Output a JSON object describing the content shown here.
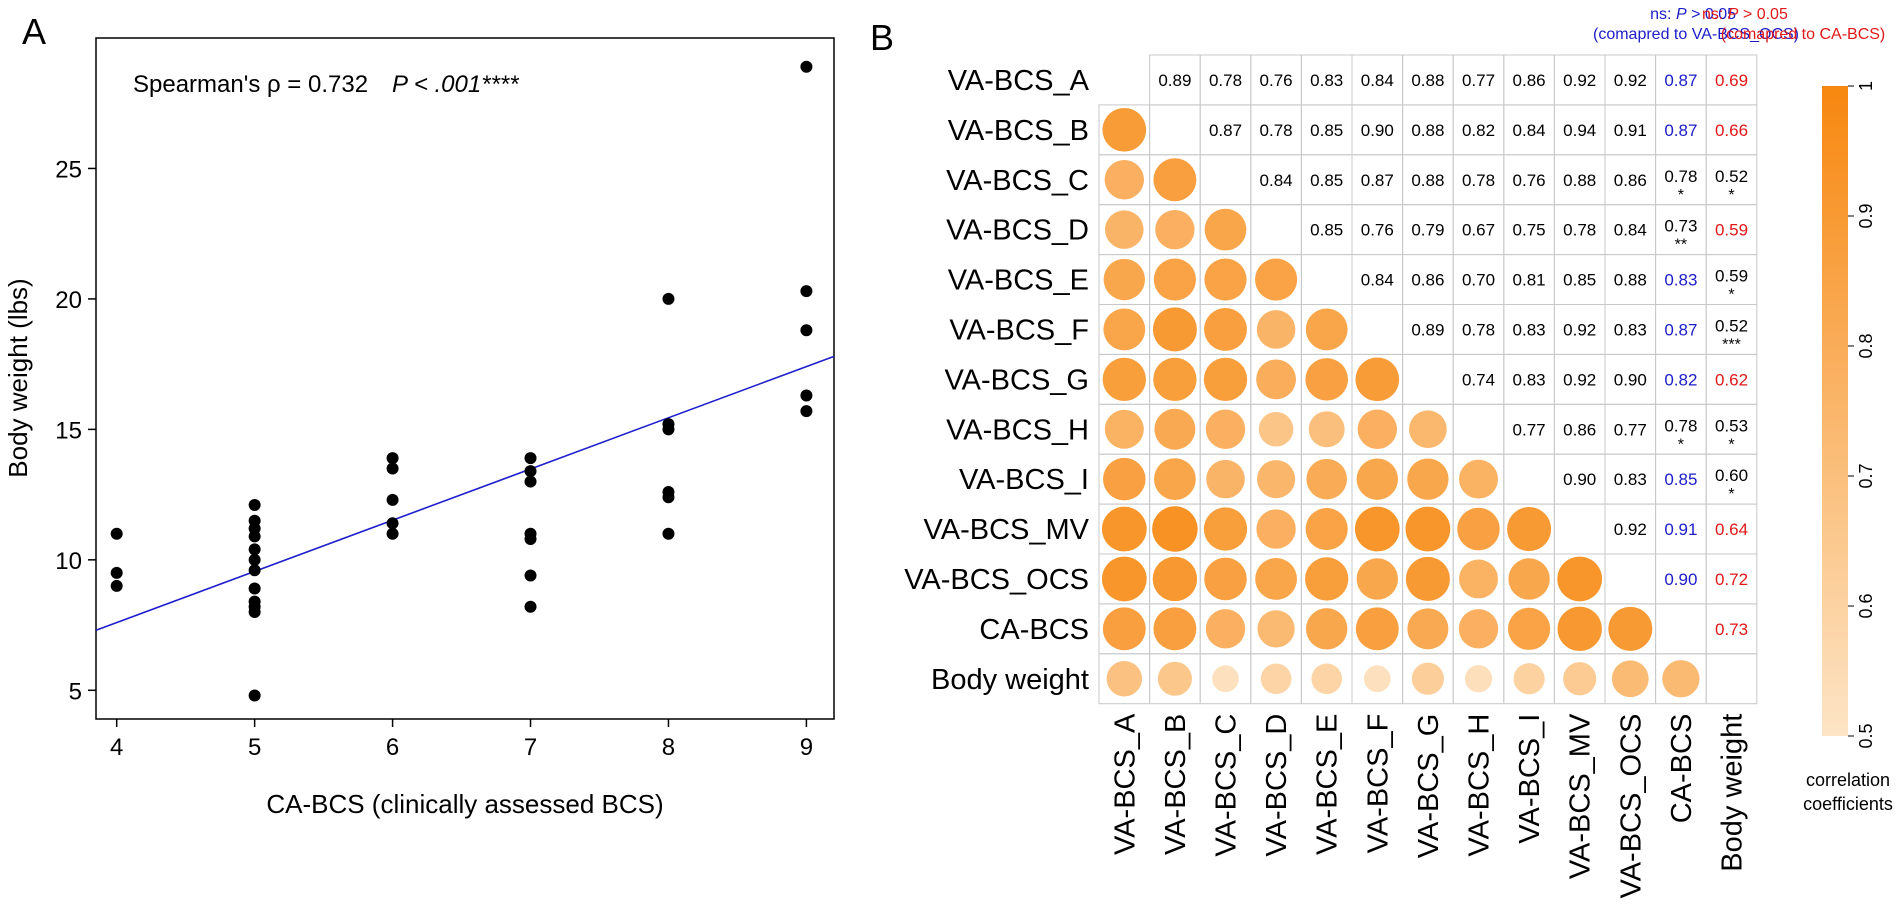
{
  "chart_data": [
    {
      "panel": "A",
      "type": "scatter",
      "title": "",
      "annotation_stat": "Spearman's ρ = 0.732",
      "annotation_p": "P < .001****",
      "xlabel": "CA-BCS (clinically assessed BCS)",
      "ylabel": "Body weight (lbs)",
      "xlim": [
        3.85,
        9.2
      ],
      "ylim": [
        3.9,
        30.0
      ],
      "xticks": [
        4,
        5,
        6,
        7,
        8,
        9
      ],
      "yticks": [
        5,
        10,
        15,
        20,
        25
      ],
      "points": [
        [
          4,
          11.0
        ],
        [
          4,
          9.5
        ],
        [
          4,
          9.0
        ],
        [
          5,
          12.1
        ],
        [
          5,
          11.5
        ],
        [
          5,
          11.2
        ],
        [
          5,
          10.9
        ],
        [
          5,
          10.4
        ],
        [
          5,
          10.0
        ],
        [
          5,
          9.6
        ],
        [
          5,
          8.9
        ],
        [
          5,
          8.4
        ],
        [
          5,
          8.2
        ],
        [
          5,
          8.0
        ],
        [
          5,
          4.8
        ],
        [
          6,
          13.9
        ],
        [
          6,
          13.5
        ],
        [
          6,
          12.3
        ],
        [
          6,
          11.4
        ],
        [
          6,
          11.0
        ],
        [
          7,
          13.9
        ],
        [
          7,
          13.4
        ],
        [
          7,
          13.0
        ],
        [
          7,
          11.0
        ],
        [
          7,
          10.8
        ],
        [
          7,
          9.4
        ],
        [
          7,
          8.2
        ],
        [
          8,
          20.0
        ],
        [
          8,
          15.2
        ],
        [
          8,
          15.0
        ],
        [
          8,
          12.6
        ],
        [
          8,
          12.4
        ],
        [
          8,
          11.0
        ],
        [
          9,
          28.9
        ],
        [
          9,
          20.3
        ],
        [
          9,
          18.8
        ],
        [
          9,
          16.3
        ],
        [
          9,
          15.7
        ]
      ],
      "fit_line": {
        "x": [
          3.85,
          9.2
        ],
        "y": [
          7.3,
          17.8
        ],
        "color": "#1f1fcc"
      }
    },
    {
      "panel": "B",
      "type": "heatmap",
      "variables": [
        "VA-BCS_A",
        "VA-BCS_B",
        "VA-BCS_C",
        "VA-BCS_D",
        "VA-BCS_E",
        "VA-BCS_F",
        "VA-BCS_G",
        "VA-BCS_H",
        "VA-BCS_I",
        "VA-BCS_MV",
        "VA-BCS_OCS",
        "CA-BCS",
        "Body weight"
      ],
      "upper_values": [
        [
          null,
          "0.89",
          "0.78",
          "0.76",
          "0.83",
          "0.84",
          "0.88",
          "0.77",
          "0.86",
          "0.92",
          "0.92",
          "0.87",
          "0.69"
        ],
        [
          null,
          null,
          "0.87",
          "0.78",
          "0.85",
          "0.90",
          "0.88",
          "0.82",
          "0.84",
          "0.94",
          "0.91",
          "0.87",
          "0.66"
        ],
        [
          null,
          null,
          null,
          "0.84",
          "0.85",
          "0.87",
          "0.88",
          "0.78",
          "0.76",
          "0.88",
          "0.86",
          "0.78",
          "0.52"
        ],
        [
          null,
          null,
          null,
          null,
          "0.85",
          "0.76",
          "0.79",
          "0.67",
          "0.75",
          "0.78",
          "0.84",
          "0.73",
          "0.59"
        ],
        [
          null,
          null,
          null,
          null,
          null,
          "0.84",
          "0.86",
          "0.70",
          "0.81",
          "0.85",
          "0.88",
          "0.83",
          "0.59"
        ],
        [
          null,
          null,
          null,
          null,
          null,
          null,
          "0.89",
          "0.78",
          "0.83",
          "0.92",
          "0.83",
          "0.87",
          "0.52"
        ],
        [
          null,
          null,
          null,
          null,
          null,
          null,
          null,
          "0.74",
          "0.83",
          "0.92",
          "0.90",
          "0.82",
          "0.62"
        ],
        [
          null,
          null,
          null,
          null,
          null,
          null,
          null,
          null,
          "0.77",
          "0.86",
          "0.77",
          "0.78",
          "0.53"
        ],
        [
          null,
          null,
          null,
          null,
          null,
          null,
          null,
          null,
          null,
          "0.90",
          "0.83",
          "0.85",
          "0.60"
        ],
        [
          null,
          null,
          null,
          null,
          null,
          null,
          null,
          null,
          null,
          null,
          "0.92",
          "0.91",
          "0.64"
        ],
        [
          null,
          null,
          null,
          null,
          null,
          null,
          null,
          null,
          null,
          null,
          null,
          "0.90",
          "0.72"
        ],
        [
          null,
          null,
          null,
          null,
          null,
          null,
          null,
          null,
          null,
          null,
          null,
          null,
          "0.73"
        ],
        [
          null,
          null,
          null,
          null,
          null,
          null,
          null,
          null,
          null,
          null,
          null,
          null,
          null
        ]
      ],
      "sig_marks": [
        {
          "row": 2,
          "col": 11,
          "mark": "*"
        },
        {
          "row": 2,
          "col": 12,
          "mark": "*"
        },
        {
          "row": 3,
          "col": 11,
          "mark": "**"
        },
        {
          "row": 4,
          "col": 12,
          "mark": "*"
        },
        {
          "row": 5,
          "col": 12,
          "mark": "***"
        },
        {
          "row": 7,
          "col": 11,
          "mark": "*"
        },
        {
          "row": 7,
          "col": 12,
          "mark": "*"
        },
        {
          "row": 8,
          "col": 12,
          "mark": "*"
        }
      ],
      "ns_blue": [
        [
          0,
          11
        ],
        [
          1,
          11
        ],
        [
          4,
          11
        ],
        [
          5,
          11
        ],
        [
          6,
          11
        ],
        [
          8,
          11
        ],
        [
          9,
          11
        ],
        [
          10,
          11
        ]
      ],
      "ns_red": [
        [
          0,
          12
        ],
        [
          1,
          12
        ],
        [
          3,
          12
        ],
        [
          6,
          12
        ],
        [
          9,
          12
        ],
        [
          10,
          12
        ],
        [
          11,
          12
        ]
      ],
      "legend_ns_ocs_prefix": "ns: ",
      "legend_ns_ocs_p": "P",
      "legend_ns_ocs_rest": " > 0.05",
      "legend_ns_ocs_note": "(comapred to VA-BCS_OCS)",
      "legend_ns_ca_prefix": "ns: ",
      "legend_ns_ca_p": "P",
      "legend_ns_ca_rest": " > 0.05",
      "legend_ns_ca_note": "(comapred to CA-BCS)",
      "colorbar_ticks": [
        "0.5",
        "0.6",
        "0.7",
        "0.8",
        "0.9",
        "1"
      ],
      "colorbar_range": [
        0.5,
        1.0
      ],
      "colorbar_label_1": "correlation",
      "colorbar_label_2": "coefficients",
      "colors": {
        "low": "#fde5c6",
        "high": "#f7870f",
        "blue": "#1c1cc8",
        "red": "#e01818"
      }
    }
  ],
  "panel_labels": {
    "a": "A",
    "b": "B"
  }
}
